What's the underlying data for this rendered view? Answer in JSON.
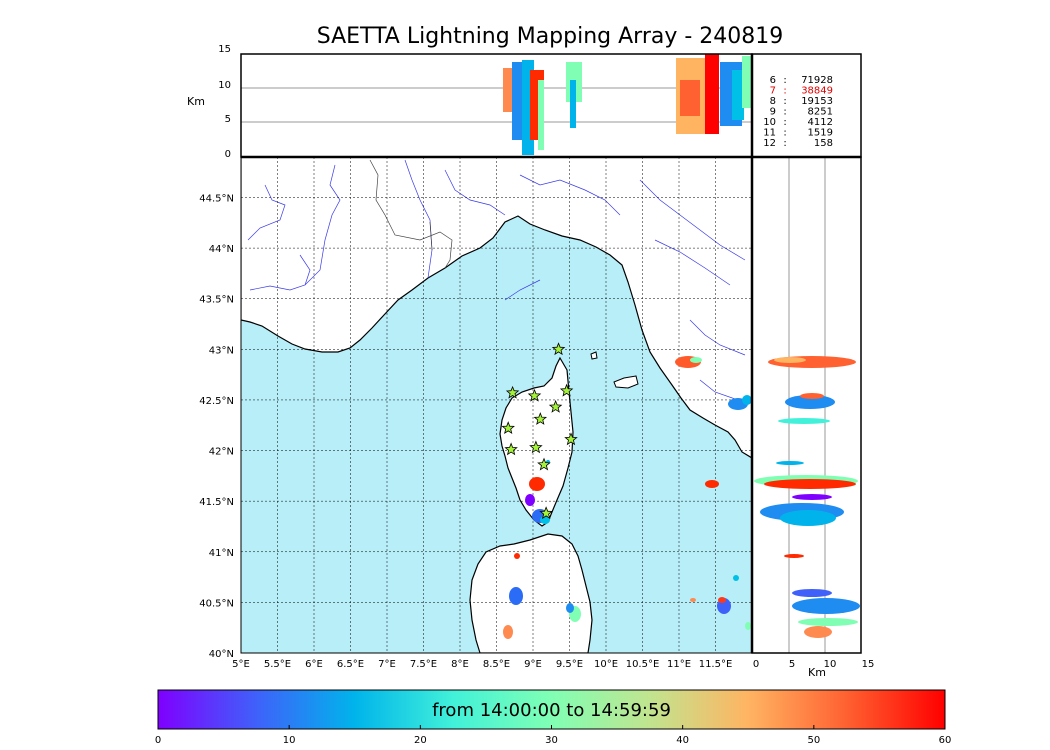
{
  "title": "SAETTA Lightning Mapping Array - 240819",
  "alt_axis": {
    "label": "Km",
    "ticks": [
      "0",
      "5",
      "10",
      "15"
    ]
  },
  "map": {
    "lon_ticks": [
      "5°E",
      "5.5°E",
      "6°E",
      "6.5°E",
      "7°E",
      "7.5°E",
      "8°E",
      "8.5°E",
      "9°E",
      "9.5°E",
      "10°E",
      "10.5°E",
      "11°E",
      "11.5°E"
    ],
    "lat_ticks": [
      "40°N",
      "40.5°N",
      "41°N",
      "41.5°N",
      "42°N",
      "42.5°N",
      "43°N",
      "43.5°N",
      "44°N",
      "44.5°N"
    ],
    "colors": {
      "sea": "#b7eef8",
      "land": "#ffffff",
      "rivers": "#3a3ae8",
      "coast": "#000000",
      "stations": "#a5f23a"
    },
    "stations": [
      {
        "lon": 9.35,
        "lat": 43.0
      },
      {
        "lon": 8.72,
        "lat": 42.57
      },
      {
        "lon": 9.02,
        "lat": 42.54
      },
      {
        "lon": 9.46,
        "lat": 42.59
      },
      {
        "lon": 9.31,
        "lat": 42.43
      },
      {
        "lon": 9.1,
        "lat": 42.31
      },
      {
        "lon": 8.66,
        "lat": 42.22
      },
      {
        "lon": 9.52,
        "lat": 42.11
      },
      {
        "lon": 8.7,
        "lat": 42.01
      },
      {
        "lon": 9.04,
        "lat": 42.03
      },
      {
        "lon": 9.15,
        "lat": 41.86
      },
      {
        "lon": 9.18,
        "lat": 41.38
      }
    ]
  },
  "counts": {
    "rows": [
      {
        "k": "6",
        "sep": ":",
        "v": "71928",
        "color": "#000000"
      },
      {
        "k": "7",
        "sep": ":",
        "v": "38849",
        "color": "#e00000"
      },
      {
        "k": "8",
        "sep": ":",
        "v": "19153",
        "color": "#000000"
      },
      {
        "k": "9",
        "sep": ":",
        "v": "8251",
        "color": "#000000"
      },
      {
        "k": "10",
        "sep": ":",
        "v": "4112",
        "color": "#000000"
      },
      {
        "k": "11",
        "sep": ":",
        "v": "1519",
        "color": "#000000"
      },
      {
        "k": "12",
        "sep": ":",
        "v": "158",
        "color": "#000000"
      }
    ]
  },
  "colorbar": {
    "label": "from 14:00:00 to 14:59:59",
    "ticks": [
      "0",
      "10",
      "20",
      "30",
      "40",
      "50",
      "60"
    ],
    "colors": [
      "#7f00ff",
      "#3f61fa",
      "#00b4eb",
      "#41f1d9",
      "#80ffb4",
      "#c1e48f",
      "#ffb462",
      "#ff6131",
      "#ff0000"
    ]
  }
}
